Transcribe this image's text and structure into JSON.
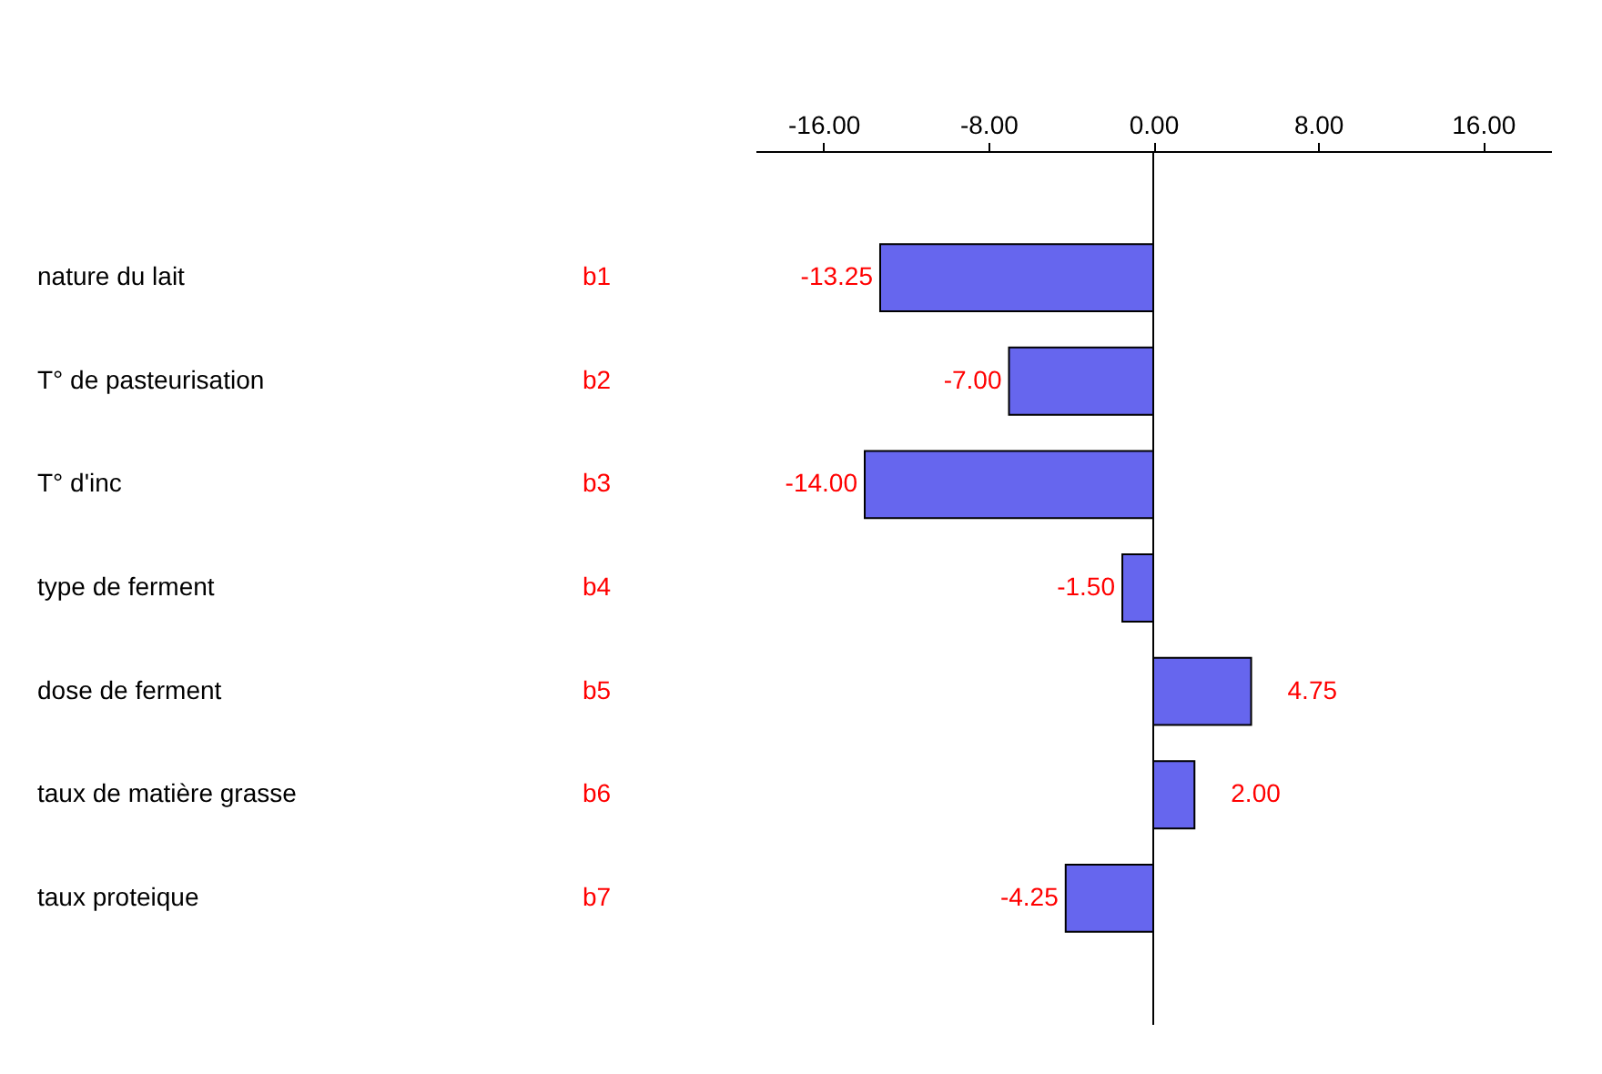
{
  "chart_data": {
    "type": "bar",
    "orientation": "horizontal",
    "categories": [
      "nature du lait",
      "T° de pasteurisation",
      "T° d'inc",
      "type de ferment",
      "dose de ferment",
      "taux de matière grasse",
      "taux proteique"
    ],
    "values": [
      -13.25,
      -7.0,
      -14.0,
      -1.5,
      4.75,
      2.0,
      -4.25
    ],
    "value_labels": [
      "-13.25",
      "-7.00",
      "-14.00",
      "-1.50",
      "4.75",
      "2.00",
      "-4.25"
    ],
    "color": "#6666ee",
    "x2lim": [
      -19.3,
      19.3
    ],
    "x2ticks": [
      {
        "value": -16,
        "label": "-16.00"
      },
      {
        "value": -8,
        "label": "-8.00"
      },
      {
        "value": 0,
        "label": "0.00"
      },
      {
        "value": 8,
        "label": "8.00"
      },
      {
        "value": 16,
        "label": "16.00"
      }
    ],
    "ref_lines": [
      {
        "axis": "x",
        "value": 0
      }
    ],
    "annotations": [
      "b1",
      "b2",
      "b3",
      "b4",
      "b5",
      "b6",
      "b7"
    ],
    "grid": false
  }
}
